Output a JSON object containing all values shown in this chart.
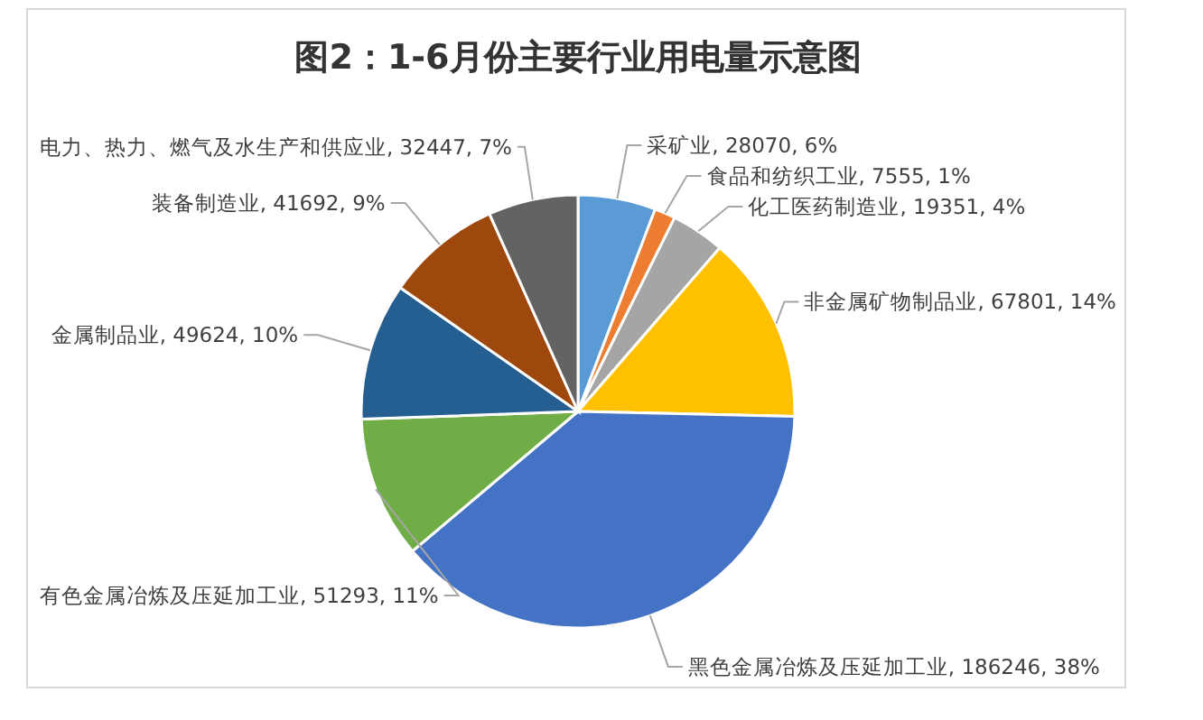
{
  "chart_data": {
    "type": "pie",
    "title": "图2：1-6月份主要行业用电量示意图",
    "categories": [
      "采矿业",
      "食品和纺织工业",
      "化工医药制造业",
      "非金属矿物制品业",
      "黑色金属冶炼及压延加工业",
      "有色金属冶炼及压延加工业",
      "金属制品业",
      "装备制造业",
      "电力、热力、燃气及水生产和供应业"
    ],
    "values": [
      28070,
      7555,
      19351,
      67801,
      186246,
      51293,
      49624,
      41692,
      32447
    ],
    "value_labels": [
      "28070, 6%",
      "7555, 1%",
      "19351, 4%",
      "67801, 14%",
      "186246, 38%",
      "51293, 11%",
      "49624, 10%",
      "41692, 9%",
      "32447, 7%"
    ],
    "colors": [
      "#5b9bd5",
      "#ed7d31",
      "#a5a5a5",
      "#ffc000",
      "#4472c4",
      "#70ad47",
      "#255e91",
      "#9e480e",
      "#636363"
    ]
  }
}
